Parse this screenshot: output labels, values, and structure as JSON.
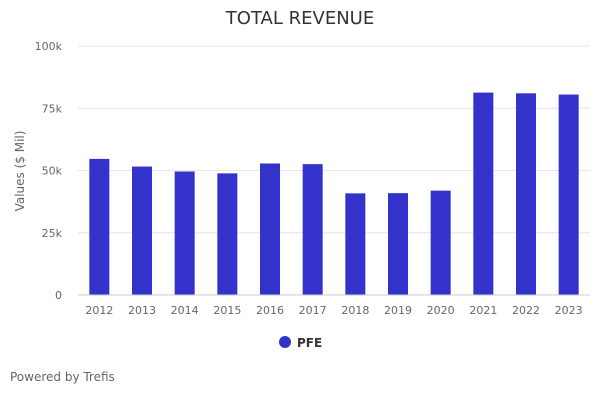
{
  "chart_data": {
    "type": "bar",
    "title": "TOTAL REVENUE",
    "xlabel": "",
    "ylabel": "Values ($ Mil)",
    "ylim": [
      0,
      100000
    ],
    "yticks": [
      {
        "value": 0,
        "label": "0"
      },
      {
        "value": 25000,
        "label": "25k"
      },
      {
        "value": 50000,
        "label": "50k"
      },
      {
        "value": 75000,
        "label": "75k"
      },
      {
        "value": 100000,
        "label": "100k"
      }
    ],
    "grid": true,
    "legend_position": "bottom",
    "categories": [
      "2012",
      "2013",
      "2014",
      "2015",
      "2016",
      "2017",
      "2018",
      "2019",
      "2020",
      "2021",
      "2022",
      "2023"
    ],
    "series": [
      {
        "name": "PFE",
        "color": "#3333CC",
        "values": [
          54657,
          51584,
          49605,
          48851,
          52824,
          52546,
          40825,
          40905,
          41908,
          81288,
          81000,
          80500
        ]
      }
    ]
  },
  "footer": {
    "credit": "Powered by Trefis"
  }
}
